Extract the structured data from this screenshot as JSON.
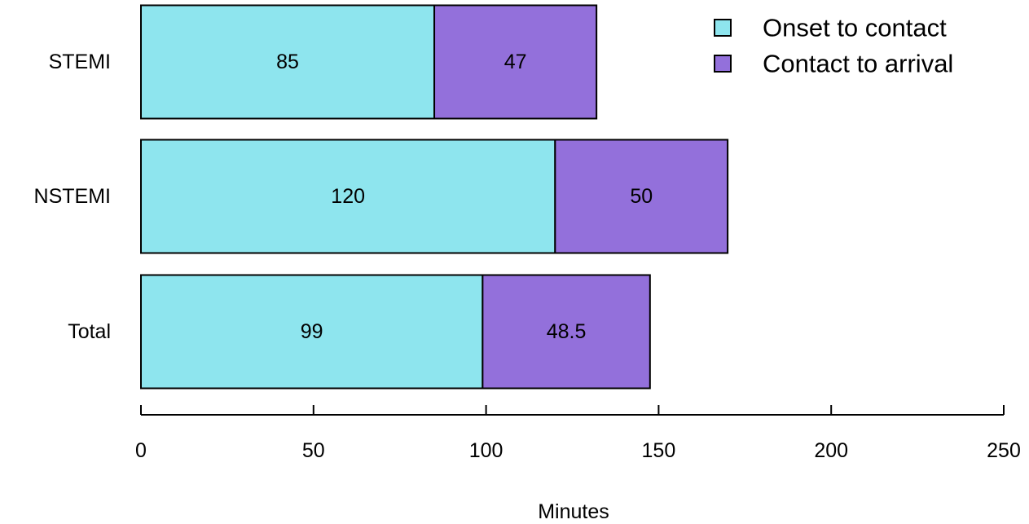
{
  "chart_data": {
    "type": "bar",
    "orientation": "horizontal",
    "stacked": true,
    "categories": [
      "STEMI",
      "NSTEMI",
      "Total"
    ],
    "series": [
      {
        "name": "Onset to contact",
        "values": [
          85,
          120,
          99
        ],
        "labels": [
          "85",
          "120",
          "99"
        ],
        "color": "#8EE5EE"
      },
      {
        "name": "Contact to arrival",
        "values": [
          47,
          50,
          48.5
        ],
        "labels": [
          "47",
          "50",
          "48.5"
        ],
        "color": "#9370DB"
      }
    ],
    "xlabel": "Minutes",
    "ylabel": "",
    "xlim": [
      0,
      250
    ],
    "xticks": [
      0,
      50,
      100,
      150,
      200,
      250
    ],
    "xtick_labels": [
      "0",
      "50",
      "100",
      "150",
      "200",
      "250"
    ],
    "grid": false,
    "legend_position": "top-right"
  }
}
